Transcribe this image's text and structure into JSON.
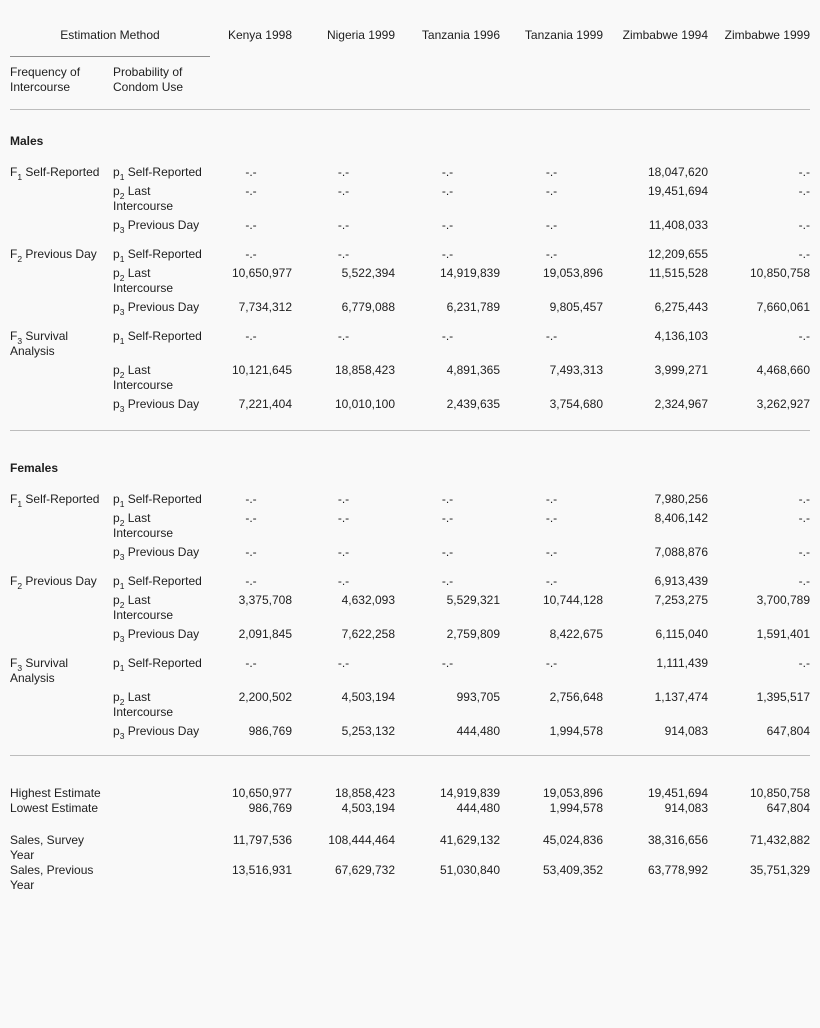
{
  "header": {
    "group_title": "Estimation Method",
    "col1_label": "Frequency of Intercourse",
    "col2_label": "Probability of Condom Use",
    "countries": [
      "Kenya 1998",
      "Nigeria 1999",
      "Tanzania 1996",
      "Tanzania 1999",
      "Zimbabwe 1994",
      "Zimbabwe 1999"
    ]
  },
  "sections": [
    {
      "title": "Males",
      "groups": [
        {
          "freq": {
            "sym": "F",
            "sub": "1",
            "label": "Self-Reported"
          },
          "rows": [
            {
              "prob": {
                "sym": "p",
                "sub": "1",
                "label": "Self-Reported"
              },
              "values": [
                "-.-",
                "-.-",
                "-.-",
                "-.-",
                "18,047,620",
                "-.-"
              ]
            },
            {
              "prob": {
                "sym": "p",
                "sub": "2",
                "label": "Last Intercourse"
              },
              "values": [
                "-.-",
                "-.-",
                "-.-",
                "-.-",
                "19,451,694",
                "-.-"
              ]
            },
            {
              "prob": {
                "sym": "p",
                "sub": "3",
                "label": "Previous Day"
              },
              "values": [
                "-.-",
                "-.-",
                "-.-",
                "-.-",
                "11,408,033",
                "-.-"
              ]
            }
          ]
        },
        {
          "freq": {
            "sym": "F",
            "sub": "2",
            "label": "Previous Day"
          },
          "rows": [
            {
              "prob": {
                "sym": "p",
                "sub": "1",
                "label": "Self-Reported"
              },
              "values": [
                "-.-",
                "-.-",
                "-.-",
                "-.-",
                "12,209,655",
                "-.-"
              ]
            },
            {
              "prob": {
                "sym": "p",
                "sub": "2",
                "label": "Last Intercourse"
              },
              "values": [
                "10,650,977",
                "5,522,394",
                "14,919,839",
                "19,053,896",
                "11,515,528",
                "10,850,758"
              ]
            },
            {
              "prob": {
                "sym": "p",
                "sub": "3",
                "label": "Previous Day"
              },
              "values": [
                "7,734,312",
                "6,779,088",
                "6,231,789",
                "9,805,457",
                "6,275,443",
                "7,660,061"
              ]
            }
          ]
        },
        {
          "freq": {
            "sym": "F",
            "sub": "3",
            "label": "Survival Analysis"
          },
          "rows": [
            {
              "prob": {
                "sym": "p",
                "sub": "1",
                "label": "Self-Reported"
              },
              "values": [
                "-.-",
                "-.-",
                "-.-",
                "-.-",
                "4,136,103",
                "-.-"
              ]
            },
            {
              "prob": {
                "sym": "p",
                "sub": "2",
                "label": "Last Intercourse"
              },
              "values": [
                "10,121,645",
                "18,858,423",
                "4,891,365",
                "7,493,313",
                "3,999,271",
                "4,468,660"
              ]
            },
            {
              "prob": {
                "sym": "p",
                "sub": "3",
                "label": "Previous Day"
              },
              "values": [
                "7,221,404",
                "10,010,100",
                "2,439,635",
                "3,754,680",
                "2,324,967",
                "3,262,927"
              ]
            }
          ]
        }
      ]
    },
    {
      "title": "Females",
      "groups": [
        {
          "freq": {
            "sym": "F",
            "sub": "1",
            "label": "Self-Reported"
          },
          "rows": [
            {
              "prob": {
                "sym": "p",
                "sub": "1",
                "label": "Self-Reported"
              },
              "values": [
                "-.-",
                "-.-",
                "-.-",
                "-.-",
                "7,980,256",
                "-.-"
              ]
            },
            {
              "prob": {
                "sym": "p",
                "sub": "2",
                "label": "Last Intercourse"
              },
              "values": [
                "-.-",
                "-.-",
                "-.-",
                "-.-",
                "8,406,142",
                "-.-"
              ]
            },
            {
              "prob": {
                "sym": "p",
                "sub": "3",
                "label": "Previous Day"
              },
              "values": [
                "-.-",
                "-.-",
                "-.-",
                "-.-",
                "7,088,876",
                "-.-"
              ]
            }
          ]
        },
        {
          "freq": {
            "sym": "F",
            "sub": "2",
            "label": "Previous Day"
          },
          "rows": [
            {
              "prob": {
                "sym": "p",
                "sub": "1",
                "label": "Self-Reported"
              },
              "values": [
                "-.-",
                "-.-",
                "-.-",
                "-.-",
                "6,913,439",
                "-.-"
              ]
            },
            {
              "prob": {
                "sym": "p",
                "sub": "2",
                "label": "Last Intercourse"
              },
              "values": [
                "3,375,708",
                "4,632,093",
                "5,529,321",
                "10,744,128",
                "7,253,275",
                "3,700,789"
              ]
            },
            {
              "prob": {
                "sym": "p",
                "sub": "3",
                "label": "Previous Day"
              },
              "values": [
                "2,091,845",
                "7,622,258",
                "2,759,809",
                "8,422,675",
                "6,115,040",
                "1,591,401"
              ]
            }
          ]
        },
        {
          "freq": {
            "sym": "F",
            "sub": "3",
            "label": "Survival Analysis"
          },
          "rows": [
            {
              "prob": {
                "sym": "p",
                "sub": "1",
                "label": "Self-Reported"
              },
              "values": [
                "-.-",
                "-.-",
                "-.-",
                "-.-",
                "1,111,439",
                "-.-"
              ]
            },
            {
              "prob": {
                "sym": "p",
                "sub": "2",
                "label": "Last Intercourse"
              },
              "values": [
                "2,200,502",
                "4,503,194",
                "993,705",
                "2,756,648",
                "1,137,474",
                "1,395,517"
              ]
            },
            {
              "prob": {
                "sym": "p",
                "sub": "3",
                "label": "Previous Day"
              },
              "values": [
                "986,769",
                "5,253,132",
                "444,480",
                "1,994,578",
                "914,083",
                "647,804"
              ]
            }
          ]
        }
      ]
    }
  ],
  "summary": [
    {
      "label": "Highest Estimate",
      "gap_before": false,
      "values": [
        "10,650,977",
        "18,858,423",
        "14,919,839",
        "19,053,896",
        "19,451,694",
        "10,850,758"
      ]
    },
    {
      "label": "Lowest Estimate",
      "gap_before": false,
      "values": [
        "986,769",
        "4,503,194",
        "444,480",
        "1,994,578",
        "914,083",
        "647,804"
      ]
    },
    {
      "label": "Sales, Survey Year",
      "gap_before": true,
      "values": [
        "11,797,536",
        "108,444,464",
        "41,629,132",
        "45,024,836",
        "38,316,656",
        "71,432,882"
      ]
    },
    {
      "label": "Sales, Previous Year",
      "gap_before": false,
      "values": [
        "13,516,931",
        "67,629,732",
        "51,030,840",
        "53,409,352",
        "63,778,992",
        "35,751,329"
      ]
    }
  ]
}
